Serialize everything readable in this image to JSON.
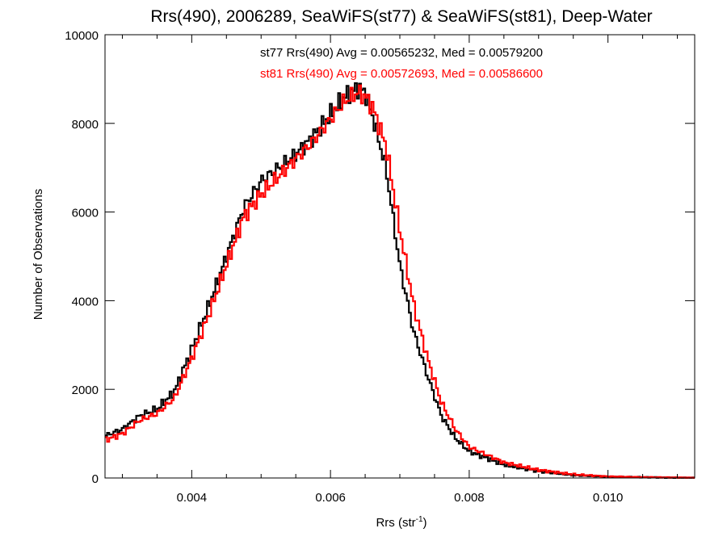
{
  "chart_data": {
    "type": "line",
    "title": "Rrs(490), 2006289, SeaWiFS(st77) & SeaWiFS(st81), Deep-Water",
    "xlabel_main": "Rrs (str",
    "xlabel_sup": "-1",
    "xlabel_close": ")",
    "ylabel": "Number of Observations",
    "xlim": [
      0.00275,
      0.01125
    ],
    "ylim": [
      0,
      10000
    ],
    "x_ticks": [
      {
        "value": 0.004,
        "label": "0.004"
      },
      {
        "value": 0.006,
        "label": "0.006"
      },
      {
        "value": 0.008,
        "label": "0.008"
      },
      {
        "value": 0.01,
        "label": "0.010"
      }
    ],
    "y_ticks": [
      {
        "value": 0,
        "label": "0"
      },
      {
        "value": 2000,
        "label": "2000"
      },
      {
        "value": 4000,
        "label": "4000"
      },
      {
        "value": 6000,
        "label": "6000"
      },
      {
        "value": 8000,
        "label": "8000"
      },
      {
        "value": 10000,
        "label": "10000"
      }
    ],
    "annotations": [
      {
        "text": "st77 Rrs(490) Avg = 0.00565232, Med = 0.00579200",
        "color": "#000000"
      },
      {
        "text": "st81 Rrs(490) Avg = 0.00572693, Med = 0.00586600",
        "color": "#ff0000"
      }
    ],
    "series": [
      {
        "color": "#000000",
        "x": [
          0.00275,
          0.003,
          0.00325,
          0.0035,
          0.00375,
          0.004,
          0.00425,
          0.0045,
          0.00475,
          0.005,
          0.00525,
          0.0055,
          0.00575,
          0.006,
          0.0062,
          0.0064,
          0.0065,
          0.0066,
          0.0068,
          0.007,
          0.0072,
          0.0074,
          0.0076,
          0.0078,
          0.008,
          0.0085,
          0.009,
          0.0095,
          0.01,
          0.0105,
          0.01125
        ],
        "y": [
          950,
          1100,
          1400,
          1550,
          1950,
          2900,
          3900,
          5000,
          6100,
          6700,
          7000,
          7300,
          7700,
          8200,
          8600,
          8800,
          8700,
          8200,
          7000,
          4800,
          3300,
          2300,
          1400,
          900,
          600,
          300,
          150,
          60,
          30,
          15,
          5
        ]
      },
      {
        "color": "#ff0000",
        "x": [
          0.00275,
          0.003,
          0.00325,
          0.0035,
          0.00375,
          0.004,
          0.00425,
          0.0045,
          0.00475,
          0.005,
          0.00525,
          0.0055,
          0.00575,
          0.006,
          0.0062,
          0.0064,
          0.0065,
          0.0066,
          0.0068,
          0.007,
          0.0072,
          0.0074,
          0.0076,
          0.0078,
          0.008,
          0.0085,
          0.009,
          0.0095,
          0.01,
          0.0105,
          0.01125
        ],
        "y": [
          850,
          1000,
          1300,
          1450,
          1800,
          2700,
          3700,
          4800,
          5900,
          6400,
          6800,
          7200,
          7600,
          8100,
          8500,
          8700,
          8600,
          8400,
          7500,
          5600,
          3900,
          2700,
          1700,
          1100,
          700,
          350,
          180,
          80,
          35,
          18,
          6
        ]
      }
    ]
  }
}
